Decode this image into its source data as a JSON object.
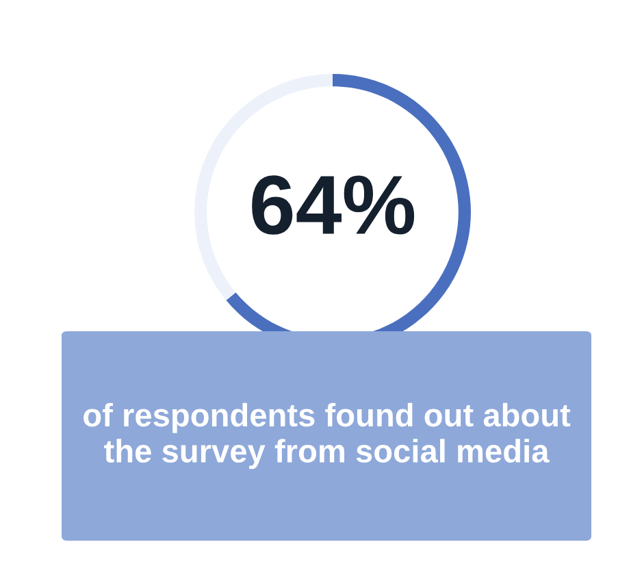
{
  "chart_data": {
    "type": "donut",
    "categories": [
      null,
      null
    ],
    "values": [
      64,
      36
    ],
    "colors": [
      "#4a6fbf",
      "#edf2fa"
    ],
    "value_labels": [
      "64%",
      null
    ],
    "annotations": [
      "of respondents found out about the survey from social media"
    ]
  }
}
